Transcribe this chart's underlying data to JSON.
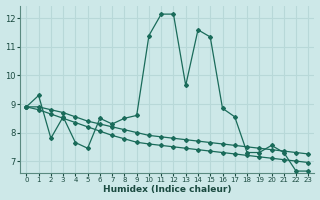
{
  "xlabel": "Humidex (Indice chaleur)",
  "background_color": "#cde8e8",
  "grid_color": "#b8d8d8",
  "line_color": "#1a6b5a",
  "xlim": [
    -0.5,
    23.5
  ],
  "ylim": [
    6.6,
    12.45
  ],
  "yticks": [
    7,
    8,
    9,
    10,
    11,
    12
  ],
  "xticks": [
    0,
    1,
    2,
    3,
    4,
    5,
    6,
    7,
    8,
    9,
    10,
    11,
    12,
    13,
    14,
    15,
    16,
    17,
    18,
    19,
    20,
    21,
    22,
    23
  ],
  "series1_x": [
    0,
    1,
    2,
    3,
    4,
    5,
    6,
    7,
    8,
    9,
    10,
    11,
    12,
    13,
    14,
    15,
    16,
    17,
    18,
    19,
    20,
    21,
    22,
    23
  ],
  "series1_y": [
    8.9,
    9.3,
    7.8,
    8.55,
    7.65,
    7.45,
    8.5,
    8.3,
    8.5,
    8.6,
    11.4,
    12.15,
    12.15,
    9.65,
    11.6,
    11.35,
    8.85,
    8.55,
    7.3,
    7.3,
    7.55,
    7.3,
    6.65,
    6.65
  ],
  "series2_x": [
    0,
    1,
    2,
    3,
    4,
    5,
    6,
    7,
    8,
    9,
    10,
    11,
    12,
    13,
    14,
    15,
    16,
    17,
    18,
    19,
    20,
    21,
    22,
    23
  ],
  "series2_y": [
    8.9,
    8.9,
    8.8,
    8.7,
    8.55,
    8.4,
    8.3,
    8.2,
    8.1,
    8.0,
    7.9,
    7.85,
    7.8,
    7.75,
    7.7,
    7.65,
    7.6,
    7.55,
    7.5,
    7.45,
    7.4,
    7.35,
    7.3,
    7.25
  ],
  "series3_x": [
    0,
    1,
    2,
    3,
    4,
    5,
    6,
    7,
    8,
    9,
    10,
    11,
    12,
    13,
    14,
    15,
    16,
    17,
    18,
    19,
    20,
    21,
    22,
    23
  ],
  "series3_y": [
    8.9,
    8.8,
    8.65,
    8.5,
    8.35,
    8.2,
    8.05,
    7.9,
    7.78,
    7.66,
    7.6,
    7.55,
    7.5,
    7.45,
    7.4,
    7.35,
    7.3,
    7.25,
    7.2,
    7.15,
    7.1,
    7.05,
    7.0,
    6.95
  ]
}
